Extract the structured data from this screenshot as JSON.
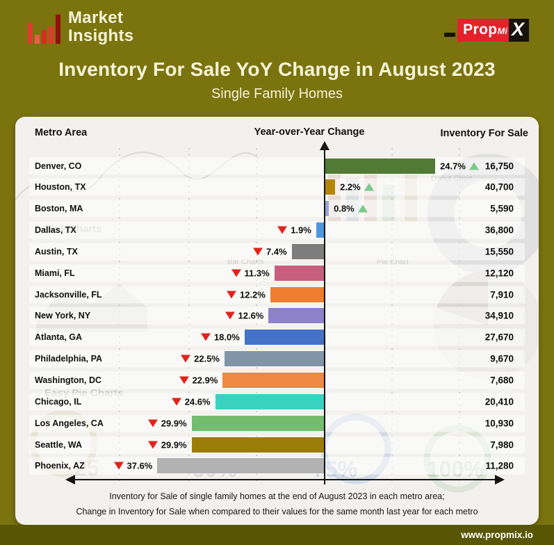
{
  "brand": {
    "name_line1": "Market",
    "name_line2": "Insights",
    "icon": "bar-chart-icon"
  },
  "propmix_logo": {
    "prop": "Prop",
    "mi": "Mi",
    "x": "X"
  },
  "title": "Inventory For Sale YoY Change in August 2023",
  "subtitle": "Single Family Homes",
  "table_headers": {
    "metro": "Metro Area",
    "yoy": "Year-over-Year Change",
    "inventory": "Inventory For Sale"
  },
  "chart_data": {
    "type": "bar",
    "orientation": "horizontal-diverging",
    "title": "Inventory For Sale YoY Change in August 2023",
    "subtitle": "Single Family Homes",
    "value_unit": "percent YoY change",
    "legend_position": "none",
    "grid": "dashed-vertical",
    "series": [
      {
        "metro": "Denver, CO",
        "yoy_change_pct": 24.7,
        "direction": "up",
        "inventory_for_sale": "16,750",
        "color": "#527a35"
      },
      {
        "metro": "Houston, TX",
        "yoy_change_pct": 2.2,
        "direction": "up",
        "inventory_for_sale": "40,700",
        "color": "#b5860b"
      },
      {
        "metro": "Boston, MA",
        "yoy_change_pct": 0.8,
        "direction": "up",
        "inventory_for_sale": "5,590",
        "color": "#9aa4d6"
      },
      {
        "metro": "Dallas, TX",
        "yoy_change_pct": -1.9,
        "direction": "down",
        "inventory_for_sale": "36,800",
        "color": "#4d97dc"
      },
      {
        "metro": "Austin, TX",
        "yoy_change_pct": -7.4,
        "direction": "down",
        "inventory_for_sale": "15,550",
        "color": "#7d7d7d"
      },
      {
        "metro": "Miami, FL",
        "yoy_change_pct": -11.3,
        "direction": "down",
        "inventory_for_sale": "12,120",
        "color": "#c75e7f"
      },
      {
        "metro": "Jacksonville, FL",
        "yoy_change_pct": -12.2,
        "direction": "down",
        "inventory_for_sale": "7,910",
        "color": "#ee7e2d"
      },
      {
        "metro": "New York, NY",
        "yoy_change_pct": -12.6,
        "direction": "down",
        "inventory_for_sale": "34,910",
        "color": "#8d82c9"
      },
      {
        "metro": "Atlanta, GA",
        "yoy_change_pct": -18.0,
        "direction": "down",
        "inventory_for_sale": "27,670",
        "color": "#4472c6"
      },
      {
        "metro": "Philadelphia, PA",
        "yoy_change_pct": -22.5,
        "direction": "down",
        "inventory_for_sale": "9,670",
        "color": "#8294a8"
      },
      {
        "metro": "Washington, DC",
        "yoy_change_pct": -22.9,
        "direction": "down",
        "inventory_for_sale": "7,680",
        "color": "#ef8843"
      },
      {
        "metro": "Chicago, IL",
        "yoy_change_pct": -24.6,
        "direction": "down",
        "inventory_for_sale": "20,410",
        "color": "#3ad1c1"
      },
      {
        "metro": "Los Angeles, CA",
        "yoy_change_pct": -29.9,
        "direction": "down",
        "inventory_for_sale": "10,930",
        "color": "#74bd6e"
      },
      {
        "metro": "Seattle, WA",
        "yoy_change_pct": -29.9,
        "direction": "down",
        "inventory_for_sale": "7,980",
        "color": "#9c7c08"
      },
      {
        "metro": "Phoenix, AZ",
        "yoy_change_pct": -37.6,
        "direction": "down",
        "inventory_for_sale": "11,280",
        "color": "#b2b2b2"
      }
    ],
    "trend_colors": {
      "up": "#7cc98a",
      "down": "#e0241b"
    }
  },
  "watermarks": {
    "labels": [
      "Line Charts",
      "Bar Charts",
      "Pie Chart",
      "Donut Chart",
      "Easy Pie Charts"
    ],
    "gauge_ticks": [
      "25",
      "50%",
      "75%",
      "100%"
    ]
  },
  "footnote": {
    "line1": "Inventory for Sale of single family homes at the end of August 2023 in each metro area;",
    "line2": "Change in Inventory for Sale when compared to their values for the same month last year for each metro"
  },
  "footer": {
    "website": "www.propmix.io"
  },
  "theme": {
    "background": "#7b730e",
    "footer_bar": "#585605",
    "card": "#f2f1ee",
    "title_text": "#f7f4da",
    "axis": "#151515"
  }
}
